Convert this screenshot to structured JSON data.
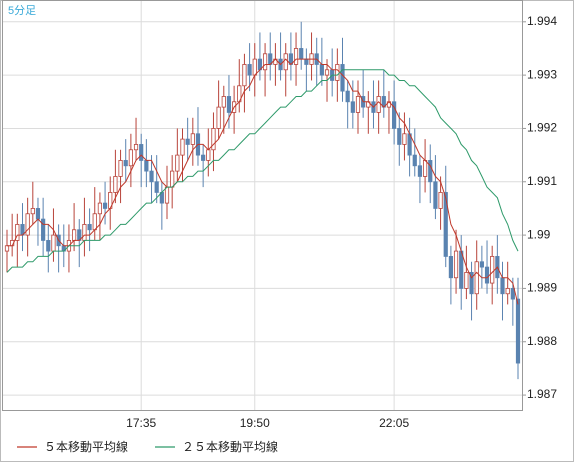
{
  "chart_data": {
    "type": "candlestick",
    "label": "5分足",
    "categories": [
      null,
      null,
      null,
      null,
      null,
      null,
      null,
      null,
      null,
      null,
      null,
      null,
      null,
      null,
      null,
      null,
      null,
      null,
      null,
      null,
      null,
      null,
      null,
      null,
      null,
      null,
      "17:35",
      null,
      null,
      null,
      null,
      null,
      null,
      null,
      null,
      null,
      null,
      null,
      null,
      null,
      null,
      null,
      null,
      null,
      null,
      null,
      null,
      null,
      "19:50",
      null,
      null,
      null,
      null,
      null,
      null,
      null,
      null,
      null,
      null,
      null,
      null,
      null,
      null,
      null,
      null,
      null,
      null,
      null,
      null,
      null,
      null,
      null,
      null,
      null,
      null,
      "22:05",
      null,
      null,
      null,
      null,
      null,
      null,
      null,
      null,
      null,
      null,
      null,
      null,
      null,
      null,
      null,
      null,
      null,
      null,
      null,
      null,
      null,
      null,
      null,
      null
    ],
    "open": [
      1.9897,
      1.9898,
      1.9899,
      1.9902,
      1.99,
      1.9904,
      1.9905,
      1.9903,
      1.9899,
      1.9897,
      1.99,
      1.9898,
      1.9897,
      1.9899,
      1.9901,
      1.9899,
      1.9902,
      1.9901,
      1.9904,
      1.9906,
      1.9905,
      1.9908,
      1.9911,
      1.9914,
      1.9913,
      1.9916,
      1.9917,
      1.9914,
      1.9912,
      1.991,
      1.9908,
      1.9906,
      1.9909,
      1.9912,
      1.9915,
      1.9918,
      1.9917,
      1.9919,
      1.9915,
      1.9914,
      1.9916,
      1.992,
      1.9924,
      1.9926,
      1.9923,
      1.9925,
      1.9928,
      1.9932,
      1.993,
      1.9933,
      1.9931,
      1.9934,
      1.9932,
      1.9933,
      1.9931,
      1.9934,
      1.9932,
      1.9935,
      1.9933,
      1.9932,
      1.9934,
      1.9932,
      1.993,
      1.9931,
      1.9929,
      1.9932,
      1.9927,
      1.9925,
      1.9923,
      1.9926,
      1.9924,
      1.9925,
      1.9923,
      1.9926,
      1.9924,
      1.9925,
      1.992,
      1.9917,
      1.9919,
      1.9915,
      1.9913,
      1.9911,
      1.9914,
      1.991,
      1.9905,
      1.9908,
      1.9896,
      1.9892,
      1.9897,
      1.989,
      1.9893,
      1.9889,
      1.9895,
      1.9894,
      1.9891,
      1.9896,
      1.9892,
      1.9889,
      1.989,
      1.9888
    ],
    "high": [
      1.9901,
      1.9904,
      1.9904,
      1.9906,
      1.9907,
      1.991,
      1.9907,
      1.9907,
      1.9902,
      1.9905,
      1.9902,
      1.9902,
      1.9902,
      1.9906,
      1.9903,
      1.9907,
      1.9905,
      1.9909,
      1.9908,
      1.991,
      1.9911,
      1.9916,
      1.9916,
      1.9918,
      1.9919,
      1.9922,
      1.9919,
      1.9918,
      1.9915,
      1.9915,
      1.991,
      1.9913,
      1.9915,
      1.992,
      1.992,
      1.9922,
      1.9922,
      1.9924,
      1.9917,
      1.992,
      1.9923,
      1.9929,
      1.9928,
      1.993,
      1.9928,
      1.9933,
      1.9934,
      1.9936,
      1.9936,
      1.9938,
      1.9936,
      1.9938,
      1.9936,
      1.9938,
      1.9936,
      1.9938,
      1.9938,
      1.994,
      1.9935,
      1.9938,
      1.9937,
      1.9937,
      1.9933,
      1.9935,
      1.9935,
      1.9937,
      1.9929,
      1.9929,
      1.9929,
      1.9931,
      1.9927,
      1.9929,
      1.9929,
      1.9931,
      1.9927,
      1.9929,
      1.9923,
      1.9923,
      1.9922,
      1.992,
      1.9915,
      1.9918,
      1.9917,
      1.9915,
      1.9911,
      1.9913,
      1.9898,
      1.9901,
      1.99,
      1.9898,
      1.9895,
      1.9899,
      1.9898,
      1.9899,
      1.9898,
      1.99,
      1.9895,
      1.9895,
      1.9892,
      1.9892
    ],
    "low": [
      1.9893,
      1.9896,
      1.9894,
      1.9897,
      1.9896,
      1.9902,
      1.9898,
      1.9896,
      1.9893,
      1.9895,
      1.9893,
      1.9894,
      1.9893,
      1.9897,
      1.9894,
      1.9896,
      1.9897,
      1.9899,
      1.9899,
      1.9902,
      1.9901,
      1.9906,
      1.9906,
      1.991,
      1.9909,
      1.9914,
      1.9909,
      1.9909,
      1.9906,
      1.9906,
      1.9901,
      1.9903,
      1.9905,
      1.991,
      1.991,
      1.9914,
      1.9913,
      1.9913,
      1.9909,
      1.9911,
      1.9912,
      1.9918,
      1.9919,
      1.992,
      1.9919,
      1.9923,
      1.9923,
      1.9927,
      1.9926,
      1.9929,
      1.9926,
      1.9929,
      1.9928,
      1.9929,
      1.9926,
      1.9929,
      1.9928,
      1.9931,
      1.9927,
      1.9929,
      1.9928,
      1.9928,
      1.9925,
      1.9926,
      1.9925,
      1.9925,
      1.992,
      1.992,
      1.9919,
      1.9922,
      1.9919,
      1.992,
      1.9919,
      1.9922,
      1.9919,
      1.9917,
      1.9913,
      1.9914,
      1.9911,
      1.9911,
      1.9906,
      1.9908,
      1.9906,
      1.9903,
      1.9901,
      1.9894,
      1.9887,
      1.9889,
      1.9886,
      1.9888,
      1.9884,
      1.9886,
      1.989,
      1.9889,
      1.9887,
      1.9889,
      1.9884,
      1.9887,
      1.9883,
      1.9873
    ],
    "close": [
      1.9898,
      1.9899,
      1.9902,
      1.99,
      1.9904,
      1.9905,
      1.9903,
      1.9899,
      1.9897,
      1.99,
      1.9898,
      1.9897,
      1.9899,
      1.9901,
      1.9899,
      1.9902,
      1.9901,
      1.9904,
      1.9906,
      1.9905,
      1.9908,
      1.9911,
      1.9914,
      1.9913,
      1.9916,
      1.9917,
      1.9914,
      1.9912,
      1.991,
      1.9908,
      1.9906,
      1.9909,
      1.9912,
      1.9915,
      1.9918,
      1.9917,
      1.9919,
      1.9915,
      1.9914,
      1.9916,
      1.992,
      1.9924,
      1.9926,
      1.9923,
      1.9925,
      1.9928,
      1.9932,
      1.993,
      1.9933,
      1.9931,
      1.9934,
      1.9932,
      1.9933,
      1.9931,
      1.9934,
      1.9932,
      1.9935,
      1.9933,
      1.9932,
      1.9934,
      1.9932,
      1.993,
      1.9931,
      1.9929,
      1.9932,
      1.9927,
      1.9925,
      1.9923,
      1.9926,
      1.9924,
      1.9925,
      1.9923,
      1.9926,
      1.9924,
      1.9925,
      1.992,
      1.9917,
      1.9919,
      1.9915,
      1.9913,
      1.9911,
      1.9914,
      1.991,
      1.9905,
      1.9908,
      1.9896,
      1.9892,
      1.9897,
      1.989,
      1.9893,
      1.9889,
      1.9895,
      1.9894,
      1.9891,
      1.9896,
      1.9892,
      1.9889,
      1.989,
      1.9888,
      1.9876
    ],
    "up_color": "#b8433a",
    "down_color": "#5a83b0",
    "series": [
      {
        "name": "５本移動平均線",
        "color": "#c0392b",
        "values": [
          1.9898,
          1.9898,
          1.99,
          1.99,
          1.9901,
          1.9902,
          1.9903,
          1.9902,
          1.9902,
          1.9901,
          1.9899,
          1.9898,
          1.9898,
          1.9899,
          1.9899,
          1.99,
          1.99,
          1.9901,
          1.9902,
          1.9904,
          1.9905,
          1.9907,
          1.9909,
          1.991,
          1.9912,
          1.9914,
          1.9915,
          1.9914,
          1.9914,
          1.9912,
          1.991,
          1.9909,
          1.9909,
          1.991,
          1.9912,
          1.9914,
          1.9916,
          1.9917,
          1.9917,
          1.9916,
          1.9917,
          1.9918,
          1.992,
          1.9922,
          1.9924,
          1.9925,
          1.9927,
          1.9928,
          1.993,
          1.9931,
          1.9932,
          1.9932,
          1.9933,
          1.9932,
          1.9933,
          1.9932,
          1.9933,
          1.9933,
          1.9933,
          1.9933,
          1.9933,
          1.9932,
          1.9932,
          1.9931,
          1.9931,
          1.993,
          1.9929,
          1.9927,
          1.9927,
          1.9925,
          1.9925,
          1.9924,
          1.9925,
          1.9924,
          1.9925,
          1.9924,
          1.9922,
          1.9921,
          1.9919,
          1.9917,
          1.9915,
          1.9914,
          1.9913,
          1.9911,
          1.991,
          1.9907,
          1.9902,
          1.99,
          1.9897,
          1.9894,
          1.9892,
          1.9893,
          1.9892,
          1.9892,
          1.9893,
          1.9894,
          1.9892,
          1.9892,
          1.9891,
          1.9887
        ]
      },
      {
        "name": "２５本移動平均線",
        "color": "#2e9a6a",
        "values": [
          1.9893,
          1.9894,
          1.9894,
          1.9894,
          1.9895,
          1.9895,
          1.9896,
          1.9896,
          1.9896,
          1.9897,
          1.9897,
          1.9897,
          1.9898,
          1.9898,
          1.9898,
          1.9899,
          1.9899,
          1.9899,
          1.9899,
          1.99,
          1.99,
          1.9901,
          1.9902,
          1.9902,
          1.9903,
          1.9904,
          1.9905,
          1.9906,
          1.9906,
          1.9907,
          1.9908,
          1.9909,
          1.9909,
          1.991,
          1.991,
          1.9911,
          1.9911,
          1.9912,
          1.9912,
          1.9913,
          1.9914,
          1.9914,
          1.9915,
          1.9916,
          1.9916,
          1.9917,
          1.9918,
          1.9919,
          1.9919,
          1.992,
          1.9921,
          1.9922,
          1.9923,
          1.9924,
          1.9924,
          1.9925,
          1.9926,
          1.9926,
          1.9927,
          1.9927,
          1.9928,
          1.9929,
          1.9929,
          1.993,
          1.993,
          1.9931,
          1.9931,
          1.9931,
          1.9931,
          1.9931,
          1.9931,
          1.9931,
          1.9931,
          1.9931,
          1.993,
          1.993,
          1.9929,
          1.9929,
          1.9928,
          1.9928,
          1.9927,
          1.9926,
          1.9925,
          1.9924,
          1.9922,
          1.9921,
          1.992,
          1.9919,
          1.9917,
          1.9916,
          1.9914,
          1.9913,
          1.9911,
          1.9909,
          1.9908,
          1.9907,
          1.9904,
          1.9902,
          1.9899,
          1.9897
        ]
      }
    ],
    "ylim": [
      1.98672,
      1.99439
    ],
    "yticks": [
      1.987,
      1.988,
      1.989,
      1.99,
      1.991,
      1.992,
      1.993,
      1.994
    ],
    "grid": true
  }
}
